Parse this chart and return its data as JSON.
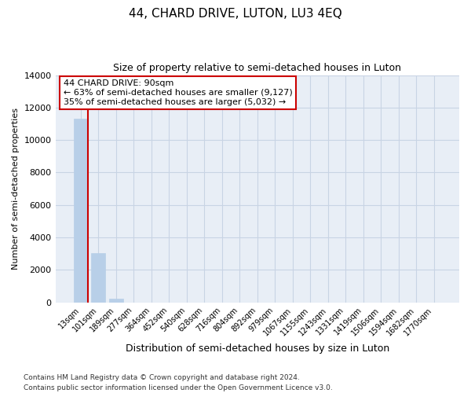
{
  "title": "44, CHARD DRIVE, LUTON, LU3 4EQ",
  "subtitle": "Size of property relative to semi-detached houses in Luton",
  "xlabel": "Distribution of semi-detached houses by size in Luton",
  "ylabel": "Number of semi-detached properties",
  "categories": [
    "13sqm",
    "101sqm",
    "189sqm",
    "277sqm",
    "364sqm",
    "452sqm",
    "540sqm",
    "628sqm",
    "716sqm",
    "804sqm",
    "892sqm",
    "979sqm",
    "1067sqm",
    "1155sqm",
    "1243sqm",
    "1331sqm",
    "1419sqm",
    "1506sqm",
    "1594sqm",
    "1682sqm",
    "1770sqm"
  ],
  "values": [
    11300,
    3050,
    210,
    0,
    0,
    0,
    0,
    0,
    0,
    0,
    0,
    0,
    0,
    0,
    0,
    0,
    0,
    0,
    0,
    0,
    0
  ],
  "bar_color": "#b8cfe8",
  "bar_edge_color": "#b8cfe8",
  "grid_color": "#c8d4e4",
  "background_color": "#e8eef6",
  "annotation_line1": "44 CHARD DRIVE: 90sqm",
  "annotation_line2": "← 63% of semi-detached houses are smaller (9,127)",
  "annotation_line3": "35% of semi-detached houses are larger (5,032) →",
  "annotation_box_color": "#ffffff",
  "annotation_box_edge_color": "#cc0000",
  "marker_line_color": "#cc0000",
  "ylim": [
    0,
    14000
  ],
  "yticks": [
    0,
    2000,
    4000,
    6000,
    8000,
    10000,
    12000,
    14000
  ],
  "footer_line1": "Contains HM Land Registry data © Crown copyright and database right 2024.",
  "footer_line2": "Contains public sector information licensed under the Open Government Licence v3.0."
}
